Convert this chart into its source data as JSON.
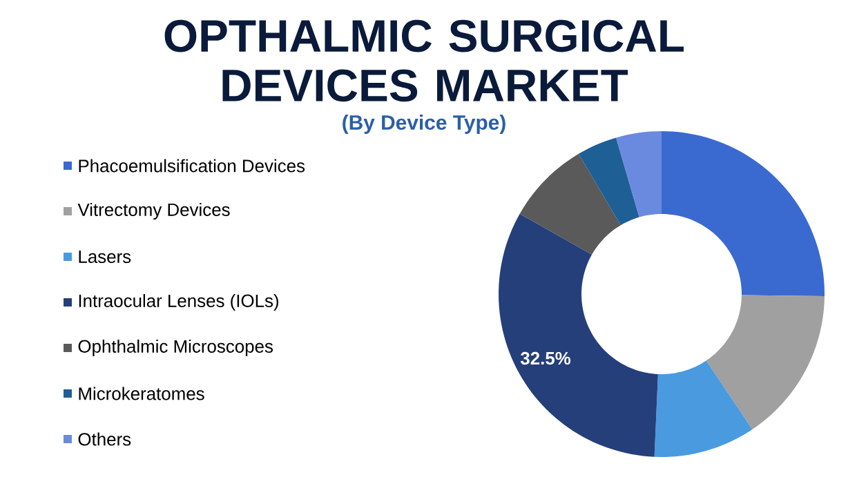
{
  "chart_data": {
    "type": "donut",
    "title": "OPTHALMIC SURGICAL DEVICES MARKET",
    "subtitle": "(By Device Type)",
    "categories": [
      "Phacoemulsification Devices",
      "Vitrectomy Devices",
      "Lasers",
      "Intraocular Lenses (IOLs)",
      "Ophthalmic Microscopes",
      "Microkeratomes",
      "Others"
    ],
    "values": [
      25.2,
      15.4,
      10.1,
      32.5,
      8.3,
      4.0,
      4.5
    ],
    "colors": [
      "#3a6ad0",
      "#a0a0a0",
      "#4a9ae0",
      "#253f7a",
      "#5a5a5a",
      "#1e5f96",
      "#6a8ae0"
    ],
    "value_labels": [
      null,
      null,
      null,
      "32.5%",
      null,
      null,
      null
    ],
    "legend": "left"
  }
}
